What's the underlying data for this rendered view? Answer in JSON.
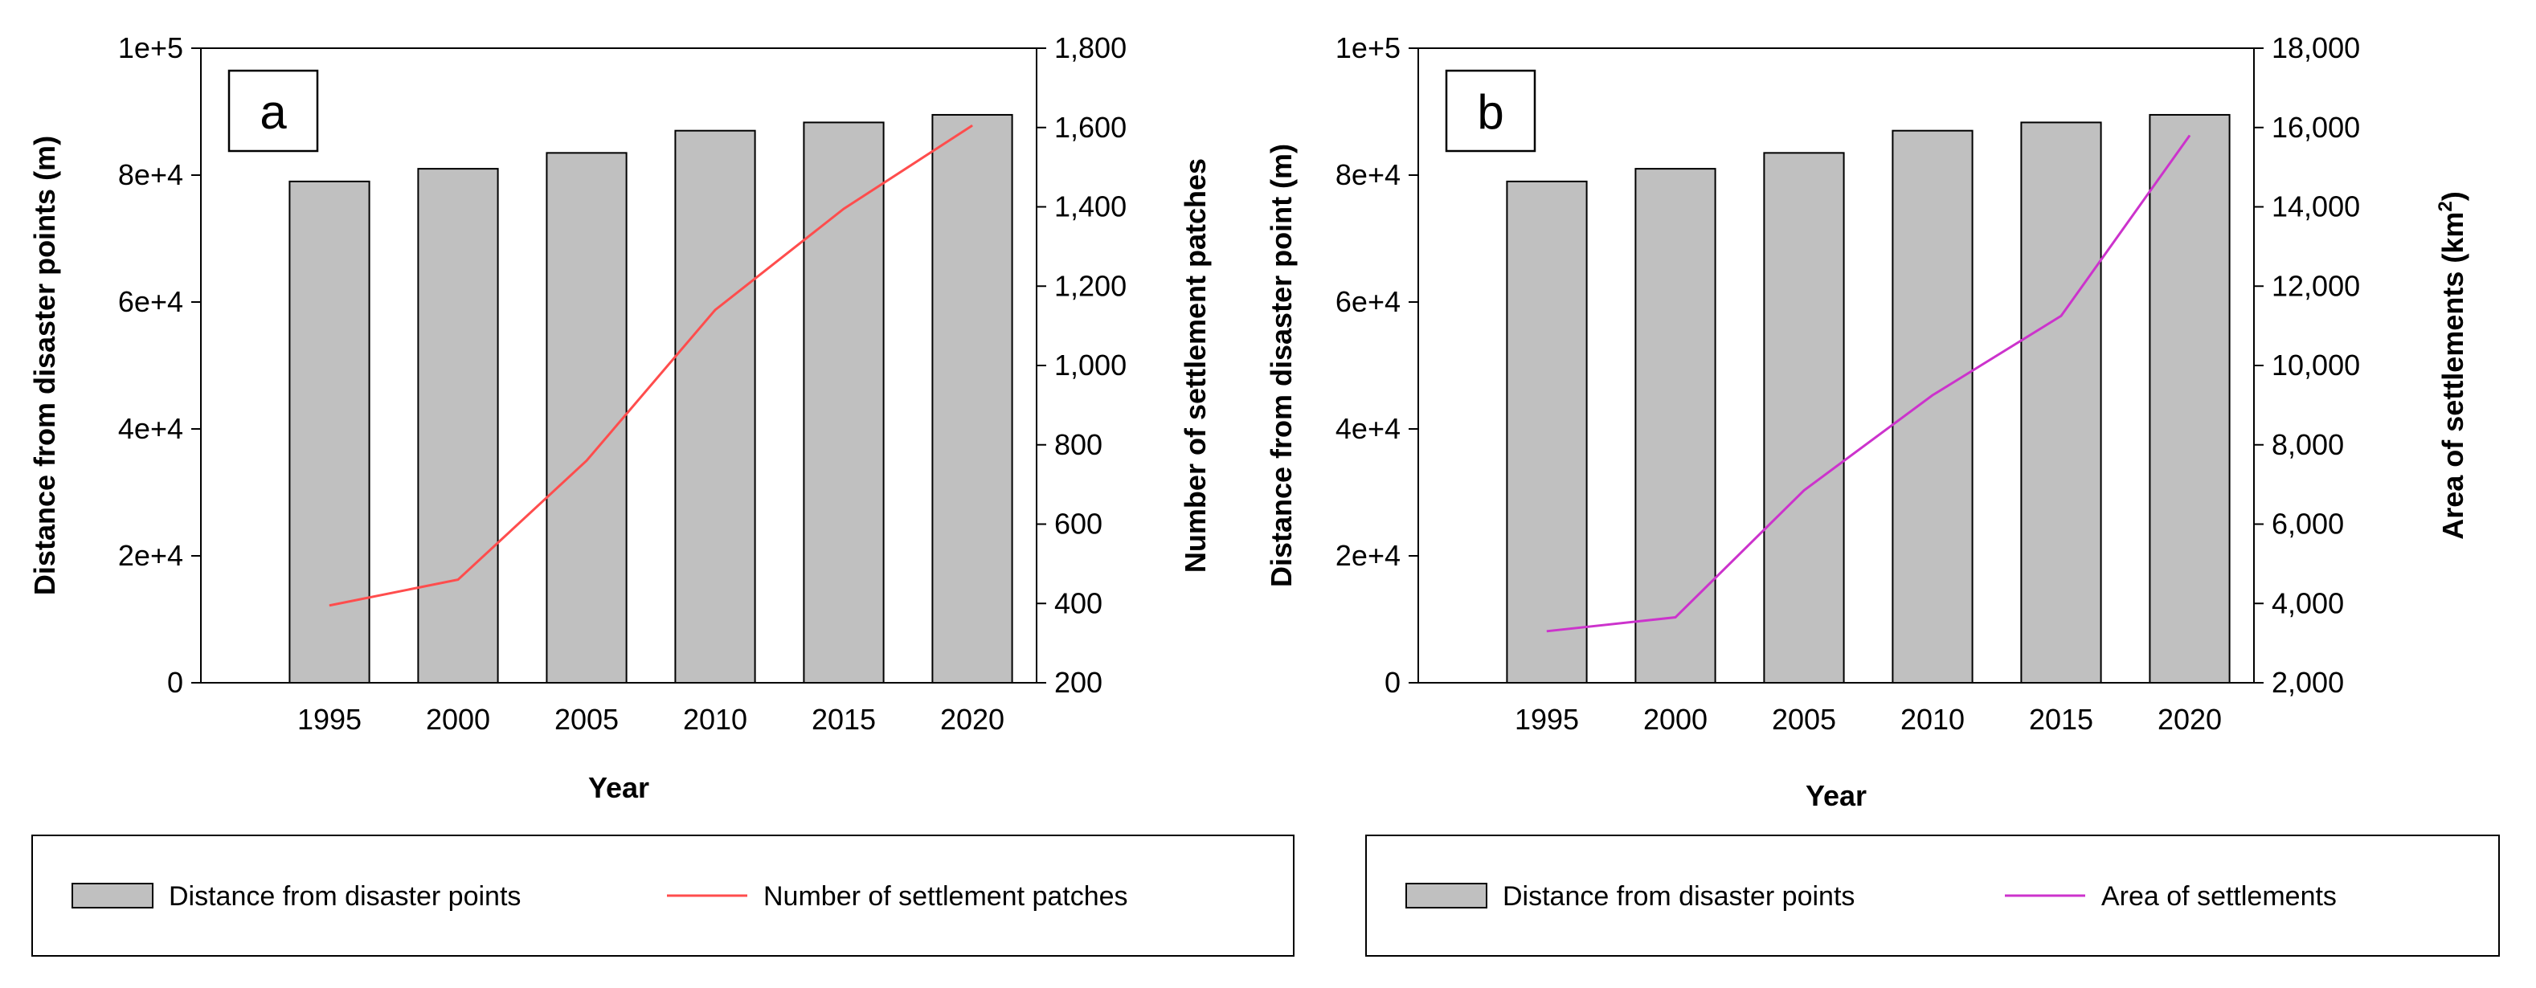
{
  "chart_data": [
    {
      "type": "bar",
      "panel_label": "a",
      "categories": [
        "1995",
        "2000",
        "2005",
        "2010",
        "2015",
        "2020"
      ],
      "xlabel": "Year",
      "y_left": {
        "label": "Distance from disaster points (m)",
        "range": [
          0,
          100000
        ],
        "ticks": [
          0,
          20000,
          40000,
          60000,
          80000,
          100000
        ],
        "tick_labels": [
          "0",
          "2e+4",
          "4e+4",
          "6e+4",
          "8e+4",
          "1e+5"
        ]
      },
      "y_right": {
        "label": "Number of settlement patches",
        "range": [
          200,
          1800
        ],
        "ticks": [
          200,
          400,
          600,
          800,
          1000,
          1200,
          1400,
          1600,
          1800
        ],
        "tick_labels": [
          "200",
          "400",
          "600",
          "800",
          "1,000",
          "1,200",
          "1,400",
          "1,600",
          "1,800"
        ]
      },
      "series": [
        {
          "name": "Distance from disaster points",
          "kind": "bar",
          "axis": "left",
          "values": [
            79000,
            81000,
            83500,
            87000,
            88300,
            89500
          ],
          "color": "#c0c0c0"
        },
        {
          "name": "Number of settlement patches",
          "kind": "line",
          "axis": "right",
          "values": [
            395,
            460,
            760,
            1140,
            1395,
            1605
          ],
          "color": "#ff4d4d"
        }
      ],
      "legend": {
        "position": "bottom"
      }
    },
    {
      "type": "bar",
      "panel_label": "b",
      "categories": [
        "1995",
        "2000",
        "2005",
        "2010",
        "2015",
        "2020"
      ],
      "xlabel": "Year",
      "y_left": {
        "label": "Distance from disaster point (m)",
        "range": [
          0,
          100000
        ],
        "ticks": [
          0,
          20000,
          40000,
          60000,
          80000,
          100000
        ],
        "tick_labels": [
          "0",
          "2e+4",
          "4e+4",
          "6e+4",
          "8e+4",
          "1e+5"
        ]
      },
      "y_right": {
        "label": "Area of settlements (km",
        "label_sup": "2",
        "label_end": ")",
        "range": [
          2000,
          18000
        ],
        "ticks": [
          2000,
          4000,
          6000,
          8000,
          10000,
          12000,
          14000,
          16000,
          18000
        ],
        "tick_labels": [
          "2,000",
          "4,000",
          "6,000",
          "8,000",
          "10,000",
          "12,000",
          "14,000",
          "16,000",
          "18,000"
        ]
      },
      "series": [
        {
          "name": "Distance from disaster points",
          "kind": "bar",
          "axis": "left",
          "values": [
            79000,
            81000,
            83500,
            87000,
            88300,
            89500
          ],
          "color": "#c0c0c0"
        },
        {
          "name": "Area of settlements",
          "kind": "line",
          "axis": "right",
          "values": [
            3300,
            3650,
            6850,
            9250,
            11250,
            15800
          ],
          "color": "#cc33cc"
        }
      ],
      "legend": {
        "position": "bottom"
      }
    }
  ]
}
